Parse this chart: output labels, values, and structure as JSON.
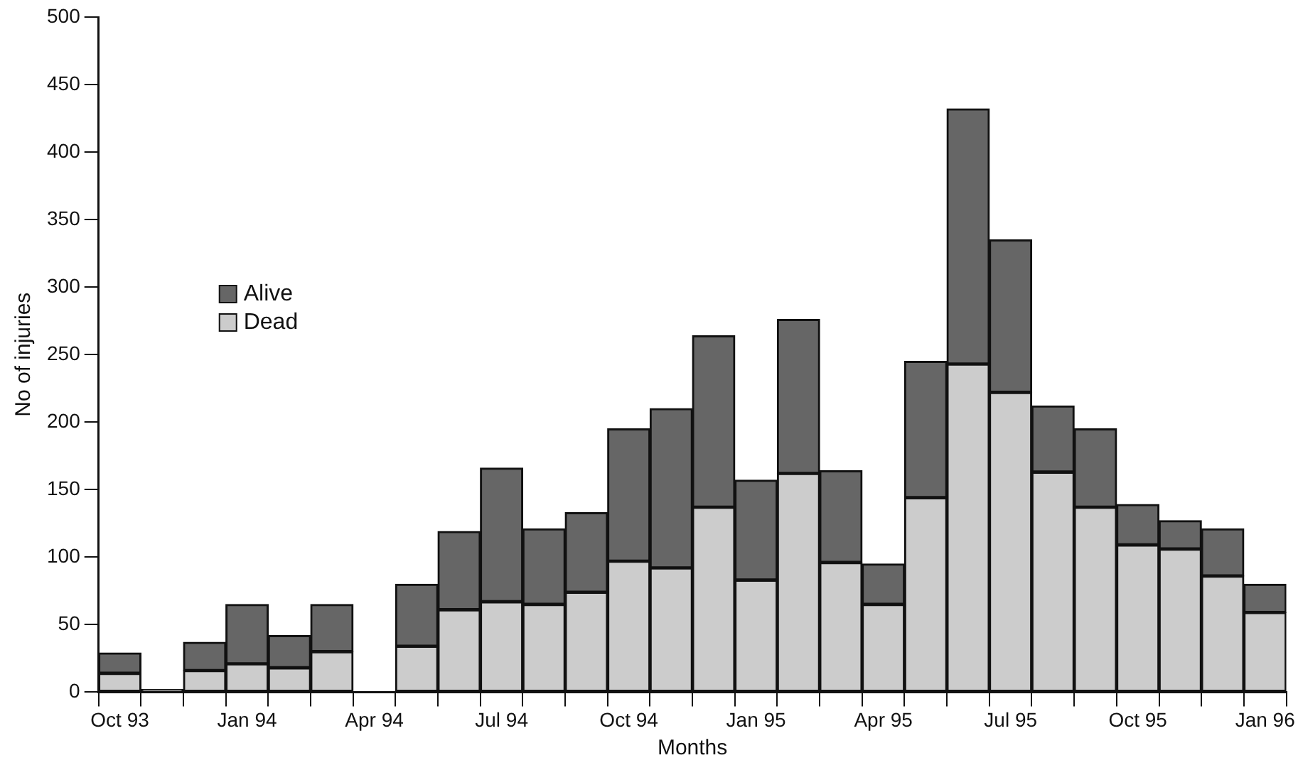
{
  "chart_data": {
    "type": "bar",
    "stacked": true,
    "xlabel": "Months",
    "ylabel": "No of injuries",
    "categories": [
      "Oct 93",
      null,
      null,
      "Jan 94",
      null,
      null,
      "Apr 94",
      null,
      null,
      "Jul 94",
      null,
      null,
      "Oct 94",
      null,
      null,
      "Jan 95",
      null,
      null,
      "Apr 95",
      null,
      null,
      "Jul 95",
      null,
      null,
      "Oct 95",
      null,
      null,
      "Jan 96"
    ],
    "series": [
      {
        "name": "Dead",
        "color": "#cccccc",
        "values": [
          14,
          0,
          16,
          21,
          18,
          30,
          0,
          34,
          61,
          67,
          65,
          74,
          97,
          92,
          137,
          83,
          162,
          96,
          65,
          144,
          243,
          222,
          163,
          137,
          109,
          106,
          86,
          59
        ]
      },
      {
        "name": "Alive",
        "color": "#666666",
        "values": [
          15,
          2,
          21,
          44,
          24,
          35,
          0,
          46,
          58,
          99,
          56,
          59,
          98,
          118,
          127,
          74,
          114,
          68,
          30,
          101,
          189,
          113,
          49,
          58,
          30,
          21,
          35,
          21
        ]
      }
    ],
    "ylim": [
      0,
      500
    ],
    "yticks": [
      0,
      50,
      100,
      150,
      200,
      250,
      300,
      350,
      400,
      450,
      500
    ],
    "grid": false,
    "legend": "left"
  }
}
